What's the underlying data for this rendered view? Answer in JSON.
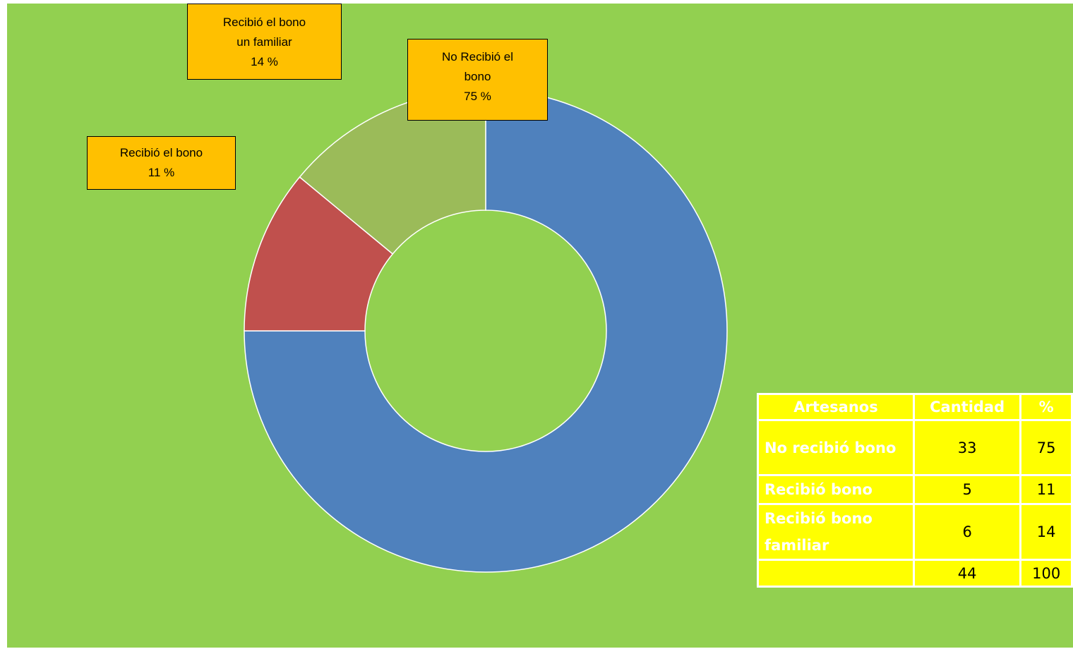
{
  "chart_data": {
    "type": "donut",
    "categories": [
      "No Recibió el bono",
      "Recibió el bono",
      "Recibió el bono un familiar"
    ],
    "values": [
      75,
      11,
      14
    ],
    "value_labels": [
      "75 %",
      "11 %",
      "14 %"
    ],
    "colors": [
      "#4f81bd",
      "#c0504d",
      "#9bbb59"
    ]
  },
  "table": {
    "header": [
      "Artesanos",
      "Cantidad",
      "%"
    ],
    "rows": [
      [
        "No recibió bono",
        33,
        75
      ],
      [
        "Recibió bono",
        5,
        11
      ],
      [
        "Recibió bono familiar",
        6,
        14
      ],
      [
        null,
        44,
        100
      ]
    ]
  }
}
